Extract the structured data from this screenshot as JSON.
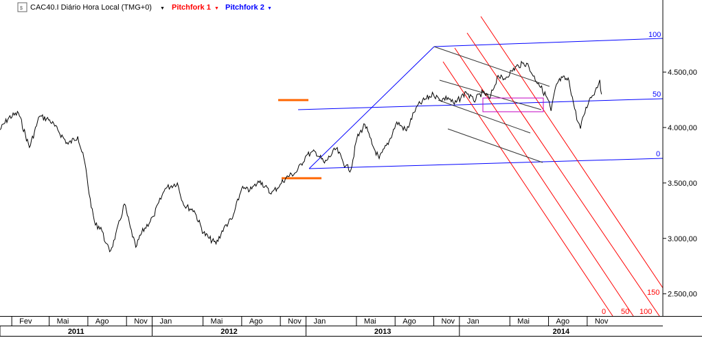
{
  "header": {
    "symbol_label": "CAC40.I Diário Hora Local (TMG+0)",
    "tool1_label": "Pitchfork 1",
    "tool2_label": "Pitchfork 2",
    "dropdown_glyph": "▼"
  },
  "colors": {
    "price": "#000000",
    "pitchfork1": "#ff0000",
    "pitchfork2": "#0000ff",
    "fan": "#333333",
    "box": "#c000c0",
    "marker": "#ff6600",
    "grid": "#000000"
  },
  "chart_data": {
    "type": "line",
    "title": "CAC40.I Diário Hora Local (TMG+0)",
    "y_scale": "linear",
    "ylim": [
      2300,
      5150
    ],
    "y_ticks": [
      2500,
      3000,
      3500,
      4000,
      4500
    ],
    "y_tick_labels": [
      "2.500,00",
      "3.000,00",
      "3.500,00",
      "4.000,00",
      "4.500,00"
    ],
    "xlim": [
      "2011-01-04",
      "2015-04-30"
    ],
    "x_months": [
      {
        "date": "2011-02-01",
        "label": "Fev"
      },
      {
        "date": "2011-05-01",
        "label": "Mai"
      },
      {
        "date": "2011-08-01",
        "label": "Ago"
      },
      {
        "date": "2011-11-01",
        "label": "Nov"
      },
      {
        "date": "2012-01-01",
        "label": "Jan"
      },
      {
        "date": "2012-05-01",
        "label": "Mai"
      },
      {
        "date": "2012-08-01",
        "label": "Ago"
      },
      {
        "date": "2012-11-01",
        "label": "Nov"
      },
      {
        "date": "2013-01-01",
        "label": "Jan"
      },
      {
        "date": "2013-05-01",
        "label": "Mai"
      },
      {
        "date": "2013-08-01",
        "label": "Ago"
      },
      {
        "date": "2013-11-01",
        "label": "Nov"
      },
      {
        "date": "2014-01-01",
        "label": "Jan"
      },
      {
        "date": "2014-05-01",
        "label": "Mai"
      },
      {
        "date": "2014-08-01",
        "label": "Ago"
      },
      {
        "date": "2014-11-01",
        "label": "Nov"
      }
    ],
    "x_years": [
      {
        "date": "2011-01-01",
        "label": "2011"
      },
      {
        "date": "2012-01-01",
        "label": "2012"
      },
      {
        "date": "2013-01-01",
        "label": "2013"
      },
      {
        "date": "2014-01-01",
        "label": "2014"
      }
    ],
    "series": [
      {
        "x": [
          "2011-01-04",
          "2011-01-25",
          "2011-02-17",
          "2011-03-15",
          "2011-04-08",
          "2011-05-02",
          "2011-05-24",
          "2011-06-15",
          "2011-07-08",
          "2011-07-25",
          "2011-08-09",
          "2011-08-19",
          "2011-09-01",
          "2011-09-12",
          "2011-09-22",
          "2011-10-04",
          "2011-10-27",
          "2011-11-10",
          "2011-11-23",
          "2011-12-07",
          "2012-01-04",
          "2012-02-01",
          "2012-03-01",
          "2012-03-16",
          "2012-04-10",
          "2012-05-02",
          "2012-05-16",
          "2012-06-01",
          "2012-06-20",
          "2012-07-10",
          "2012-08-01",
          "2012-08-20",
          "2012-09-14",
          "2012-10-10",
          "2012-11-01",
          "2012-11-15",
          "2012-12-10",
          "2013-01-02",
          "2013-01-24",
          "2013-02-14",
          "2013-03-14",
          "2013-04-05",
          "2013-04-18",
          "2013-05-02",
          "2013-05-21",
          "2013-06-07",
          "2013-06-24",
          "2013-07-18",
          "2013-08-05",
          "2013-08-28",
          "2013-09-20",
          "2013-10-10",
          "2013-10-31",
          "2013-11-15",
          "2013-12-05",
          "2013-12-20",
          "2014-01-17",
          "2014-02-04",
          "2014-02-26",
          "2014-03-14",
          "2014-04-03",
          "2014-04-15",
          "2014-05-05",
          "2014-05-21",
          "2014-06-10",
          "2014-06-23",
          "2014-07-08",
          "2014-07-31",
          "2014-08-07",
          "2014-08-20",
          "2014-09-03",
          "2014-09-19",
          "2014-10-02",
          "2014-10-10",
          "2014-10-16",
          "2014-10-24",
          "2014-11-06",
          "2014-11-20",
          "2014-12-01",
          "2014-12-05"
        ],
        "y": [
          3980,
          4090,
          4130,
          3820,
          4100,
          4070,
          3960,
          3850,
          3920,
          3680,
          3280,
          3120,
          3100,
          2960,
          2880,
          2990,
          3310,
          3100,
          2920,
          3050,
          3200,
          3450,
          3500,
          3300,
          3250,
          3050,
          3000,
          2950,
          3100,
          3180,
          3450,
          3430,
          3520,
          3400,
          3490,
          3550,
          3600,
          3750,
          3780,
          3680,
          3810,
          3650,
          3620,
          3900,
          4030,
          3850,
          3720,
          3880,
          4050,
          3970,
          4180,
          4250,
          4300,
          4250,
          4270,
          4210,
          4320,
          4240,
          4320,
          4260,
          4470,
          4430,
          4510,
          4560,
          4580,
          4480,
          4400,
          4250,
          4150,
          4390,
          4450,
          4420,
          4170,
          4050,
          3990,
          4110,
          4250,
          4330,
          4430,
          4300
        ]
      }
    ],
    "annotations": {
      "pitchfork1_labels": [
        "0",
        "50",
        "100",
        "150"
      ],
      "pitchfork2_labels": [
        "0",
        "50",
        "100"
      ]
    }
  }
}
